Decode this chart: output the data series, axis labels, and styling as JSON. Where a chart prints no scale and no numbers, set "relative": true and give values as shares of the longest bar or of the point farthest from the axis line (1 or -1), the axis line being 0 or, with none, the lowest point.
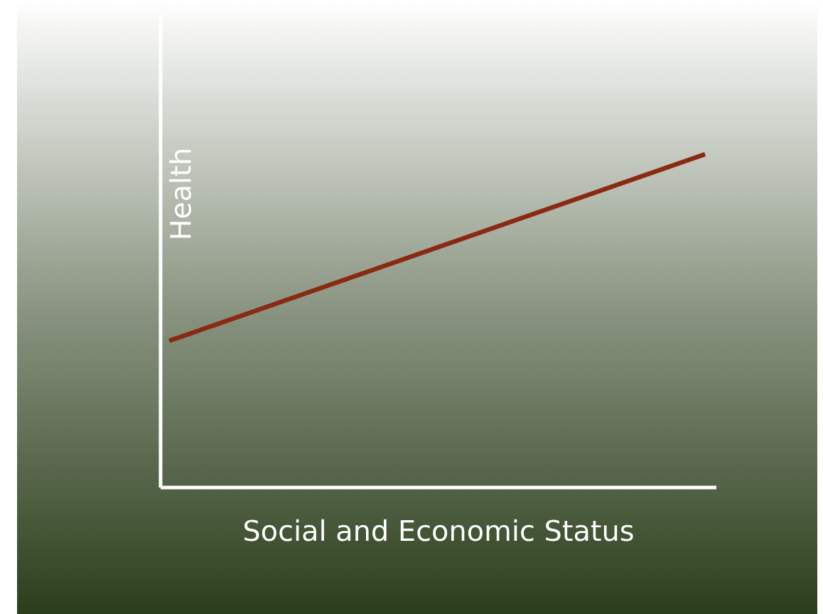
{
  "chart_data": {
    "type": "line",
    "relative": true,
    "xlabel": "Social and Economic Status",
    "ylabel": "Health",
    "categories": [
      null,
      null
    ],
    "series": [
      {
        "color": "#8b2a12",
        "values": [
          0.44,
          1
        ]
      }
    ]
  }
}
